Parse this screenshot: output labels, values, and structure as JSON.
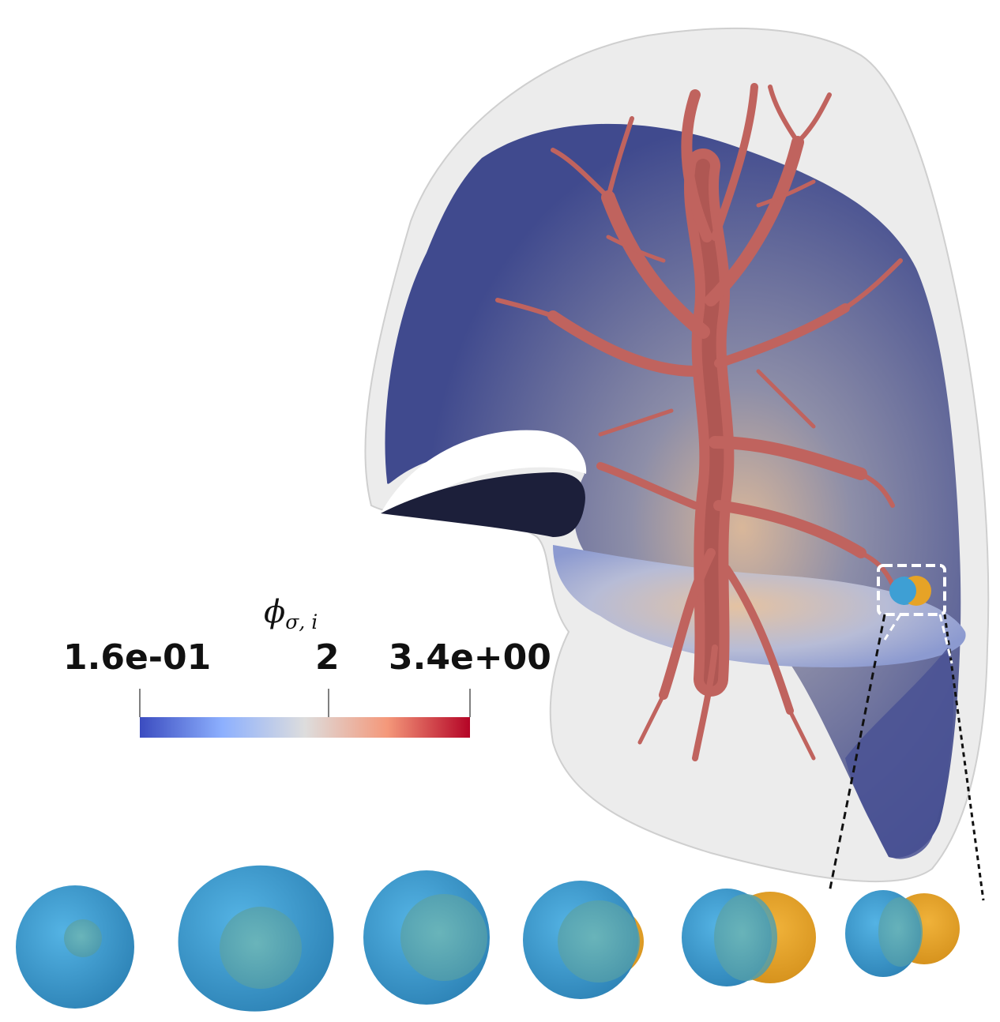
{
  "colorbar": {
    "title": "ϕ",
    "title_subscript": "σ, i",
    "min_label": "1.6e-01",
    "mid_label": "2",
    "max_label": "3.4e+00",
    "colors": [
      "#3b4cc0",
      "#8db0fe",
      "#dddddd",
      "#f4987a",
      "#b40426"
    ]
  },
  "colors": {
    "lung_shell": "#dcdcdc",
    "lung_cut": "#4a5294",
    "vessels": "#c0635e",
    "cell_body": "#3e9fd4",
    "nucleus": "#5aa8b0",
    "daughter": "#e6a326"
  },
  "tumor_stages": 6
}
